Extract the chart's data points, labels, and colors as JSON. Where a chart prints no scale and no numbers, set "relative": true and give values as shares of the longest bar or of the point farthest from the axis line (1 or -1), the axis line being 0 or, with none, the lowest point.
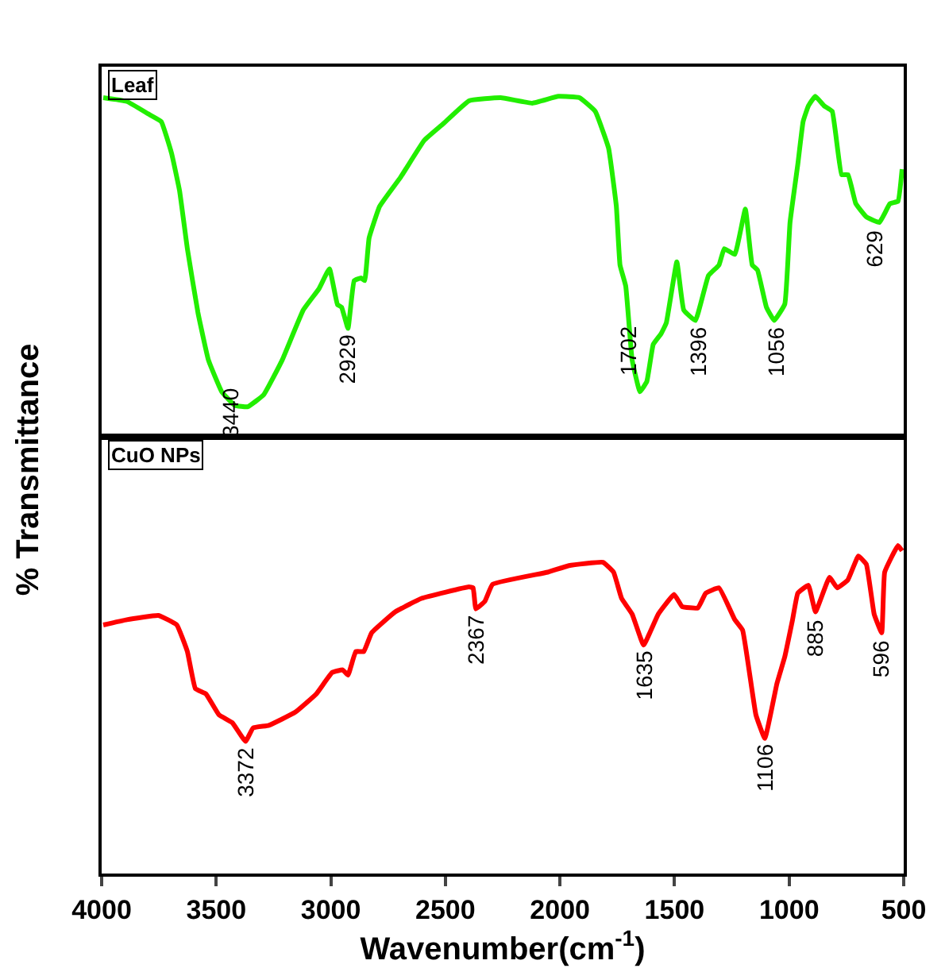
{
  "chart_data": [
    {
      "type": "line",
      "title": "Leaf",
      "ylabel": "% Transmittance",
      "relative": true,
      "xlim": [
        4000,
        500
      ],
      "tick_labels": false,
      "grid": false,
      "series": [
        {
          "color": "#22ee00",
          "x": [
            3993,
            3890,
            3798,
            3740,
            3695,
            3660,
            3626,
            3580,
            3534,
            3476,
            3419,
            3362,
            3293,
            3212,
            3120,
            3051,
            3006,
            2971,
            2953,
            2925,
            2898,
            2868,
            2852,
            2833,
            2787,
            2696,
            2592,
            2512,
            2397,
            2259,
            2121,
            2007,
            1915,
            1846,
            1788,
            1754,
            1738,
            1713,
            1685,
            1651,
            1621,
            1593,
            1559,
            1536,
            1490,
            1460,
            1409,
            1352,
            1306,
            1283,
            1237,
            1191,
            1161,
            1138,
            1099,
            1065,
            1019,
            996,
            962,
            939,
            916,
            886,
            847,
            812,
            771,
            743,
            709,
            663,
            606,
            560,
            525,
            507
          ],
          "values": [
            0.996,
            0.985,
            0.949,
            0.926,
            0.833,
            0.723,
            0.553,
            0.366,
            0.226,
            0.133,
            0.093,
            0.089,
            0.124,
            0.226,
            0.373,
            0.436,
            0.494,
            0.389,
            0.381,
            0.319,
            0.459,
            0.467,
            0.459,
            0.584,
            0.677,
            0.762,
            0.871,
            0.918,
            0.987,
            0.996,
            0.98,
            1.0,
            0.996,
            0.956,
            0.848,
            0.677,
            0.505,
            0.443,
            0.226,
            0.133,
            0.163,
            0.272,
            0.303,
            0.335,
            0.514,
            0.373,
            0.342,
            0.474,
            0.505,
            0.553,
            0.536,
            0.669,
            0.505,
            0.49,
            0.381,
            0.342,
            0.39,
            0.63,
            0.801,
            0.926,
            0.972,
            1.0,
            0.972,
            0.956,
            0.77,
            0.77,
            0.685,
            0.646,
            0.63,
            0.685,
            0.692,
            0.786
          ]
        }
      ],
      "annotations": [
        {
          "text": "3440",
          "x": 3440,
          "y": 0.107
        },
        {
          "text": "2929",
          "x": 2929,
          "y": 0.319
        },
        {
          "text": "1702",
          "x": 1702,
          "y": 0.344
        },
        {
          "text": "1396",
          "x": 1396,
          "y": 0.342
        },
        {
          "text": "1056",
          "x": 1056,
          "y": 0.342
        },
        {
          "text": "629",
          "x": 629,
          "y": 0.63
        }
      ]
    },
    {
      "type": "line",
      "title": "CuO NPs",
      "xlabel": "Wavenumber(cm$^{-1}$)",
      "relative": true,
      "xlim": [
        4000,
        500
      ],
      "xticks": [
        4000,
        3500,
        3000,
        2500,
        2000,
        1500,
        1000,
        500
      ],
      "tick_labels": "x",
      "grid": false,
      "series": [
        {
          "color": "#ff0000",
          "x": [
            3993,
            3890,
            3752,
            3672,
            3626,
            3591,
            3545,
            3488,
            3430,
            3372,
            3339,
            3270,
            3155,
            3063,
            2994,
            2948,
            2925,
            2891,
            2856,
            2822,
            2719,
            2604,
            2397,
            2379,
            2367,
            2328,
            2294,
            2053,
            1961,
            1812,
            1766,
            1731,
            1685,
            1635,
            1571,
            1502,
            1467,
            1398,
            1364,
            1306,
            1237,
            1203,
            1145,
            1106,
            1053,
            1019,
            985,
            962,
            916,
            885,
            824,
            790,
            744,
            698,
            663,
            629,
            596,
            583,
            525,
            507
          ],
          "values": [
            0.758,
            0.774,
            0.787,
            0.758,
            0.677,
            0.564,
            0.548,
            0.484,
            0.46,
            0.403,
            0.444,
            0.452,
            0.492,
            0.548,
            0.613,
            0.621,
            0.605,
            0.677,
            0.677,
            0.734,
            0.798,
            0.839,
            0.874,
            0.871,
            0.807,
            0.83,
            0.882,
            0.919,
            0.939,
            0.949,
            0.919,
            0.839,
            0.791,
            0.697,
            0.791,
            0.851,
            0.814,
            0.81,
            0.855,
            0.871,
            0.774,
            0.742,
            0.484,
            0.412,
            0.58,
            0.661,
            0.774,
            0.855,
            0.879,
            0.798,
            0.903,
            0.871,
            0.895,
            0.968,
            0.943,
            0.791,
            0.734,
            0.919,
            1.0,
            0.984
          ]
        }
      ],
      "annotations": [
        {
          "text": "3372",
          "x": 3372,
          "y": 0.403
        },
        {
          "text": "2367",
          "x": 2367,
          "y": 0.807
        },
        {
          "text": "1635",
          "x": 1635,
          "y": 0.697
        },
        {
          "text": "1106",
          "x": 1106,
          "y": 0.412
        },
        {
          "text": "885",
          "x": 885,
          "y": 0.798
        },
        {
          "text": "596",
          "x": 596,
          "y": 0.734
        }
      ]
    }
  ]
}
